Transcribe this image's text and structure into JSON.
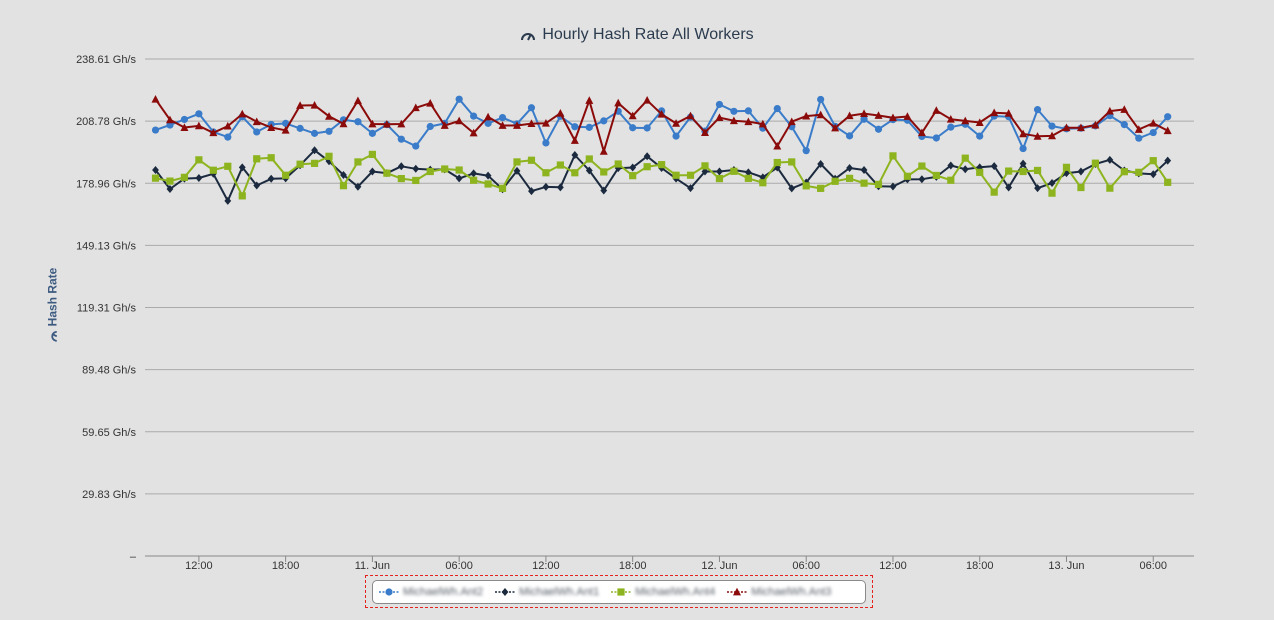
{
  "chart_data": {
    "type": "line",
    "title": "Hourly Hash Rate All Workers",
    "title_icon": "speedometer-icon",
    "ylabel": "Hash Rate",
    "ylabel_icon": "speedometer-icon",
    "y_ticks": [
      "–",
      "29.83 Gh/s",
      "59.65 Gh/s",
      "89.48 Gh/s",
      "119.31 Gh/s",
      "149.13 Gh/s",
      "178.96 Gh/s",
      "208.78 Gh/s",
      "238.61 Gh/s"
    ],
    "ylim": [
      0,
      238.61
    ],
    "y_unit": "Gh/s",
    "x_ticks": [
      {
        "label": "12:00",
        "hour": 12
      },
      {
        "label": "18:00",
        "hour": 18
      },
      {
        "label": "11. Jun",
        "hour": 24
      },
      {
        "label": "06:00",
        "hour": 30
      },
      {
        "label": "12:00",
        "hour": 36
      },
      {
        "label": "18:00",
        "hour": 42
      },
      {
        "label": "12. Jun",
        "hour": 48
      },
      {
        "label": "06:00",
        "hour": 54
      },
      {
        "label": "12:00",
        "hour": 60
      },
      {
        "label": "18:00",
        "hour": 66
      },
      {
        "label": "13. Jun",
        "hour": 72
      },
      {
        "label": "06:00",
        "hour": 78
      }
    ],
    "x_start": "10 Jun 09:00",
    "x_step": "1 hour",
    "grid": true,
    "legend_position": "bottom-center",
    "series": [
      {
        "name": "MichaelWh.Ant2",
        "color": "#3a7cc9",
        "marker": "circle",
        "values": [
          204.5,
          206.9,
          209.6,
          212.3,
          203.6,
          201.1,
          210.9,
          203.6,
          207.2,
          207.7,
          205.3,
          202.9,
          203.9,
          209.4,
          208.5,
          202.9,
          207.1,
          200.1,
          196.8,
          206.2,
          207.7,
          219.3,
          211.2,
          207.7,
          210.5,
          207.5,
          215.2,
          198.3,
          211.1,
          206.1,
          205.8,
          208.9,
          213.5,
          205.6,
          205.5,
          213.7,
          201.6,
          210.7,
          204,
          216.8,
          213.5,
          213.7,
          205.4,
          214.8,
          206.1,
          194.6,
          219.2,
          206.3,
          201.7,
          209.7,
          204.9,
          209.5,
          209.2,
          201.4,
          200.7,
          205.9,
          207.3,
          201.6,
          211.2,
          210.9,
          195.6,
          214.3,
          206.4,
          205.1,
          205.4,
          206.5,
          211.4,
          207.1,
          200.6,
          203.3,
          210.9
        ]
      },
      {
        "name": "MichaelWh.Ant1",
        "color": "#1b2a3e",
        "marker": "diamond",
        "values": [
          185.3,
          176.2,
          181.2,
          181.5,
          183.5,
          170.5,
          186.6,
          177.9,
          181.1,
          181.3,
          187.6,
          194.8,
          189.5,
          182.9,
          177.3,
          184.6,
          183.8,
          187.1,
          185.9,
          185.5,
          185.6,
          181.3,
          183.7,
          182.6,
          176.1,
          184.9,
          175.2,
          177.2,
          177,
          192.5,
          185.1,
          175.5,
          186.2,
          186.5,
          191.9,
          186.3,
          181.2,
          176.6,
          184.6,
          184.6,
          185.3,
          184.2,
          181.8,
          186.5,
          176.5,
          179.3,
          188.2,
          181.1,
          186.3,
          185.3,
          177.5,
          177.4,
          180.8,
          180.9,
          182,
          187.5,
          185.7,
          186.6,
          187.2,
          176.9,
          188.4,
          176.6,
          179.1,
          183.8,
          184.6,
          188.2,
          190.2,
          185.1,
          183.7,
          183.3,
          189.8
        ]
      },
      {
        "name": "MichaelWh.Ant4",
        "color": "#8db41e",
        "marker": "square",
        "values": [
          181.4,
          180,
          181.8,
          190.2,
          185.2,
          187.1,
          172.9,
          190.7,
          191.2,
          182.8,
          188.1,
          188.5,
          191.9,
          177.8,
          189.2,
          192.8,
          183.8,
          181.2,
          180.3,
          184.6,
          185.8,
          185.3,
          180.4,
          178.6,
          176.5,
          189.2,
          190,
          184,
          187.7,
          184,
          190.6,
          184.4,
          188.2,
          182.6,
          186.9,
          187.9,
          182.8,
          182.8,
          187.3,
          181.2,
          184.7,
          181.3,
          179.2,
          188.9,
          189.2,
          177.7,
          176.5,
          179.9,
          181.3,
          179,
          178.4,
          192.1,
          182.3,
          187.2,
          182.7,
          180.4,
          191,
          184.2,
          174.7,
          184.8,
          184.6,
          185.1,
          174.2,
          186.6,
          176.9,
          188.6,
          176.6,
          184.5,
          184.2,
          189.8,
          179.4
        ]
      },
      {
        "name": "MichaelWh.Ant3",
        "color": "#8b0a0a",
        "marker": "triangle",
        "values": [
          219.3,
          209.4,
          205.7,
          206.5,
          203.2,
          206.4,
          212.2,
          208.5,
          205.7,
          204.4,
          216.3,
          216.4,
          211.1,
          207.5,
          218.6,
          207.4,
          207.3,
          207.4,
          215.2,
          217.4,
          206.7,
          208.9,
          203.1,
          210.8,
          206.7,
          206.7,
          207.6,
          207.8,
          212.6,
          199.5,
          218.7,
          194.3,
          217.5,
          211.3,
          218.8,
          212.1,
          207.7,
          211.3,
          203.3,
          210.5,
          209,
          208.5,
          207.4,
          196.8,
          208.5,
          211.2,
          211.8,
          205.5,
          211.4,
          212.4,
          211.5,
          210.4,
          211,
          203.2,
          213.9,
          209.7,
          208.9,
          208.1,
          212.8,
          212.5,
          202.7,
          201.5,
          201.7,
          205.6,
          205.6,
          206.9,
          213.6,
          214.4,
          204.8,
          207.8,
          204.2
        ]
      }
    ]
  }
}
